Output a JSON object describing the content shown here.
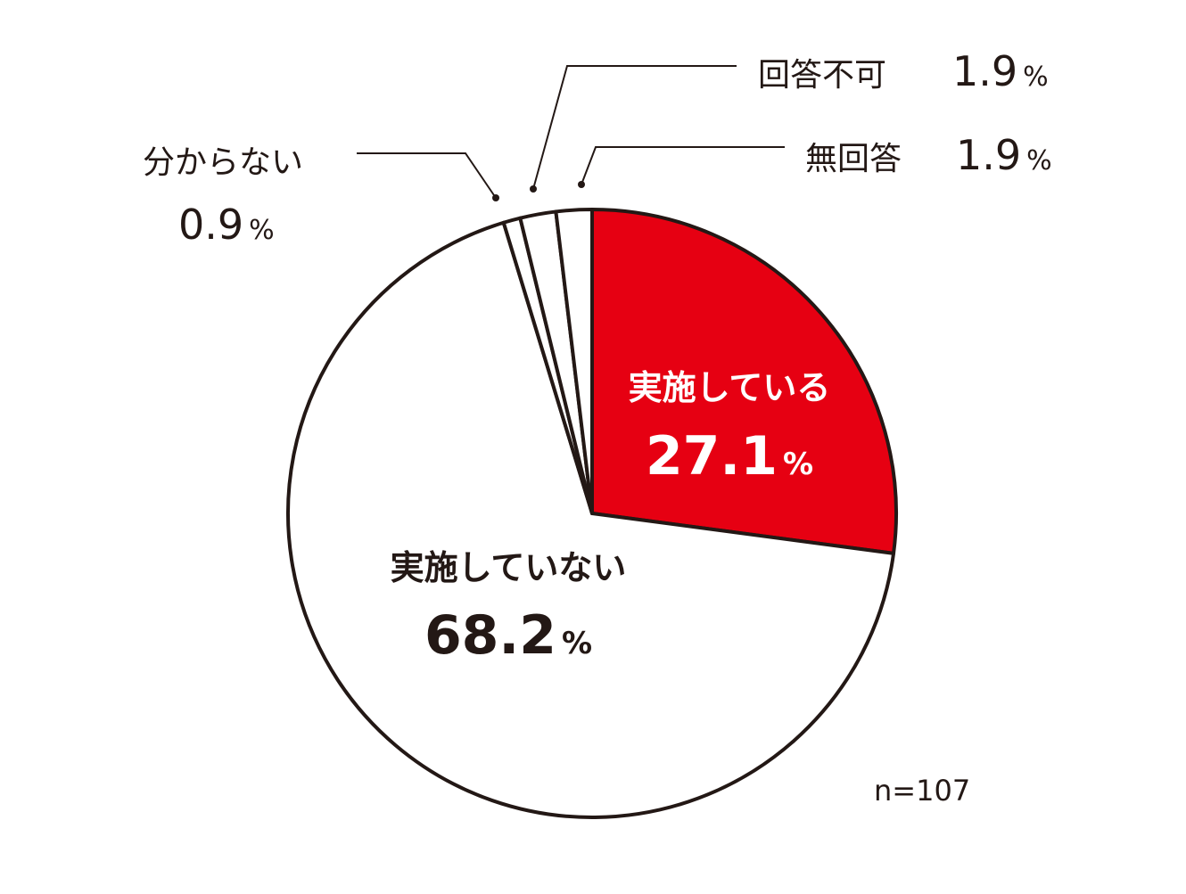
{
  "chart_data": {
    "type": "pie",
    "slices": [
      {
        "label": "実施している",
        "value": 27.1,
        "unit": "%",
        "color": "#e60012"
      },
      {
        "label": "実施していない",
        "value": 68.2,
        "unit": "%",
        "color": "#ffffff"
      },
      {
        "label": "分からない",
        "value": 0.9,
        "unit": "%",
        "color": "#ffffff"
      },
      {
        "label": "回答不可",
        "value": 1.9,
        "unit": "%",
        "color": "#ffffff"
      },
      {
        "label": "無回答",
        "value": 1.9,
        "unit": "%",
        "color": "#ffffff"
      }
    ],
    "value_texts": [
      "27.1",
      "68.2",
      "0.9",
      "1.9",
      "1.9"
    ],
    "percent_sign": "%",
    "sample_size": "n=107",
    "start": "12 o'clock",
    "direction": "clockwise",
    "outline_color": "#231815"
  }
}
